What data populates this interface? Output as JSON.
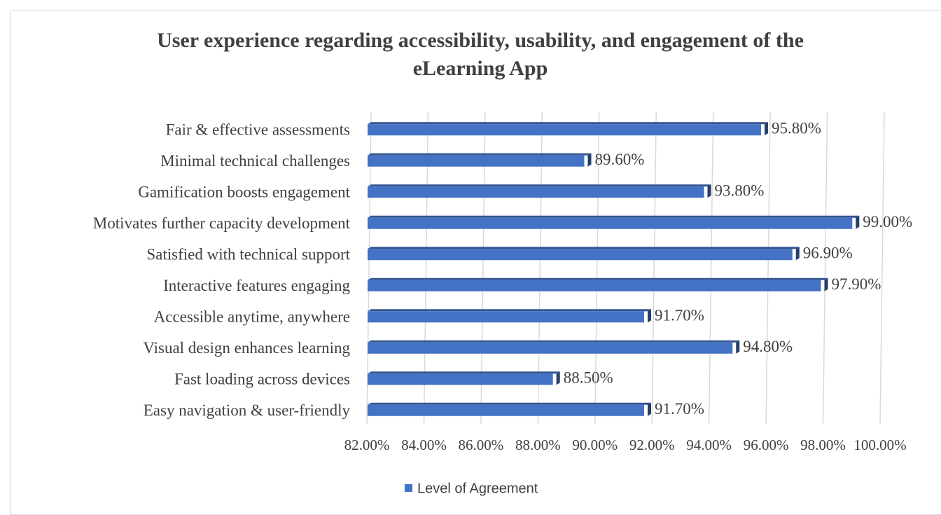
{
  "chart_data": {
    "type": "bar",
    "orientation": "horizontal",
    "title": "User experience regarding accessibility, usability, and engagement of the eLearning App",
    "categories": [
      "Fair & effective assessments",
      "Minimal technical challenges",
      "Gamification boosts engagement",
      "Motivates further capacity development",
      "Satisfied with technical support",
      "Interactive features engaging",
      "Accessible anytime, anywhere",
      "Visual design enhances learning",
      "Fast loading across devices",
      "Easy navigation & user-friendly"
    ],
    "series": [
      {
        "name": "Level of Agreement",
        "color": "#4472c4",
        "values": [
          95.8,
          89.6,
          93.8,
          99.0,
          96.9,
          97.9,
          91.7,
          94.8,
          88.5,
          91.7
        ],
        "value_labels": [
          "95.80%",
          "89.60%",
          "93.80%",
          "99.00%",
          "96.90%",
          "97.90%",
          "91.70%",
          "94.80%",
          "88.50%",
          "91.70%"
        ]
      }
    ],
    "xlim": [
      82,
      100
    ],
    "xticks": [
      {
        "value": 82,
        "label": "82.00%"
      },
      {
        "value": 84,
        "label": "84.00%"
      },
      {
        "value": 86,
        "label": "86.00%"
      },
      {
        "value": 88,
        "label": "88.00%"
      },
      {
        "value": 90,
        "label": "90.00%"
      },
      {
        "value": 92,
        "label": "92.00%"
      },
      {
        "value": 94,
        "label": "94.00%"
      },
      {
        "value": 96,
        "label": "96.00%"
      },
      {
        "value": 98,
        "label": "98.00%"
      },
      {
        "value": 100,
        "label": "100.00%"
      }
    ],
    "grid": true,
    "legend": "bottom"
  }
}
